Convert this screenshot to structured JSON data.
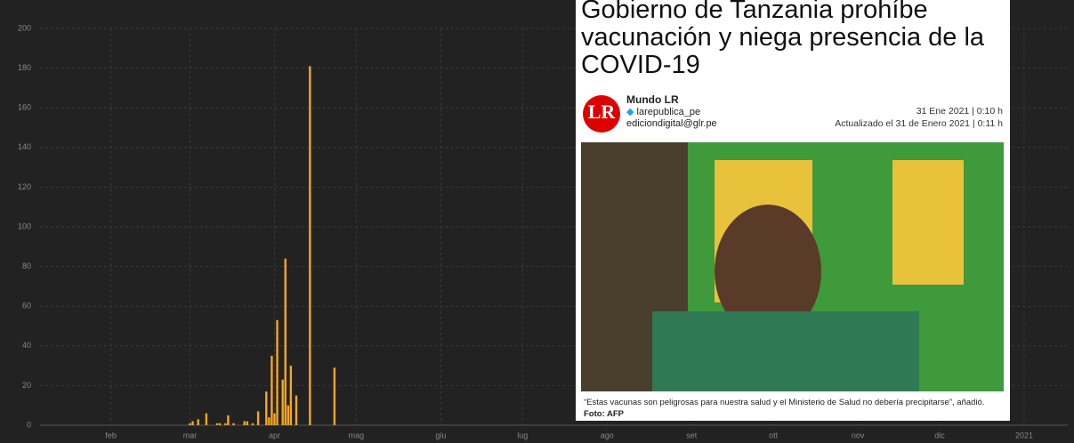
{
  "chart_data": {
    "type": "bar",
    "color": "#f5a623",
    "grid": true,
    "x": [
      61,
      62,
      64,
      67,
      71,
      72,
      74,
      75,
      77,
      81,
      82,
      84,
      86,
      89,
      90,
      91,
      92,
      93,
      95,
      96,
      97,
      98,
      100,
      105,
      114
    ],
    "values": [
      1,
      2,
      3,
      6,
      1,
      1,
      1,
      5,
      1,
      2,
      2,
      1,
      7,
      17,
      4,
      35,
      6,
      53,
      23,
      84,
      10,
      30,
      15,
      181,
      29
    ],
    "xlim": [
      6,
      383
    ],
    "xticks": [
      {
        "value": 32,
        "label": "feb"
      },
      {
        "value": 61,
        "label": "mar"
      },
      {
        "value": 92,
        "label": "apr"
      },
      {
        "value": 122,
        "label": "mag"
      },
      {
        "value": 153,
        "label": "giu"
      },
      {
        "value": 183,
        "label": "lug"
      },
      {
        "value": 214,
        "label": "ago"
      },
      {
        "value": 245,
        "label": "set"
      },
      {
        "value": 275,
        "label": "ott"
      },
      {
        "value": 306,
        "label": "nov"
      },
      {
        "value": 336,
        "label": "dic"
      },
      {
        "value": 367,
        "label": "2021"
      }
    ],
    "ylim": [
      0,
      200
    ],
    "yticks": [
      0,
      20,
      40,
      60,
      80,
      100,
      120,
      140,
      160,
      180,
      200
    ]
  },
  "article": {
    "title": "Gobierno de Tanzania prohíbe vacunación y niega presencia de la COVID-19",
    "logo": "LR",
    "author": "Mundo LR",
    "twitter": "larepublica_pe",
    "email": "ediciondigital@glr.pe",
    "date": "31 Ene 2021 | 0:10 h",
    "updated": "Actualizado el 31 de Enero 2021 | 0:11 h",
    "caption": "“Estas vacunas son peligrosas para nuestra salud y el Ministerio de Salud no debería precipitarse”, añadió.",
    "credit": "Foto: AFP"
  }
}
